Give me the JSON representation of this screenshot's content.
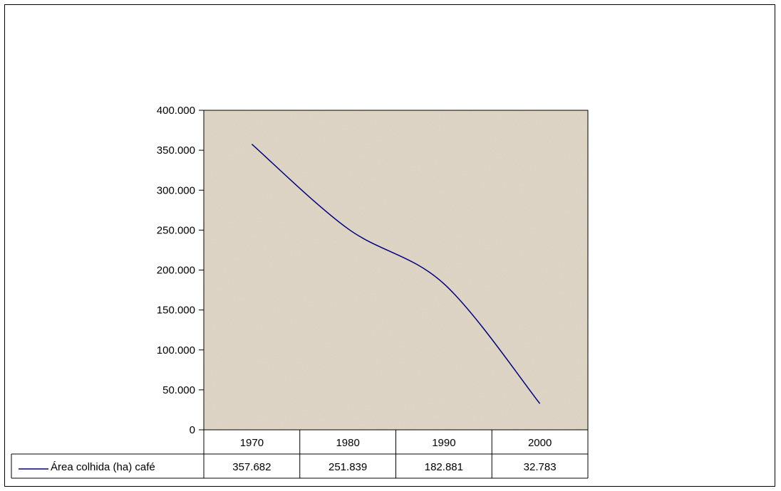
{
  "chart_data": {
    "type": "line",
    "title": "",
    "xlabel": "",
    "ylabel": "",
    "categories": [
      "1970",
      "1980",
      "1990",
      "2000"
    ],
    "series": [
      {
        "name": "Área colhida (ha) café",
        "values": [
          357682,
          251839,
          182881,
          32783
        ],
        "value_labels": [
          "357.682",
          "251.839",
          "182.881",
          "32.783"
        ],
        "color": "#000080"
      }
    ],
    "ylim": [
      0,
      400000
    ],
    "y_ticks": [
      0,
      50000,
      100000,
      150000,
      200000,
      250000,
      300000,
      350000,
      400000
    ],
    "y_tick_labels": [
      "0",
      "50.000",
      "100.000",
      "150.000",
      "200.000",
      "250.000",
      "300.000",
      "350.000",
      "400.000"
    ],
    "grid": false,
    "data_table": true,
    "plot_background": "#e2d8c8"
  }
}
